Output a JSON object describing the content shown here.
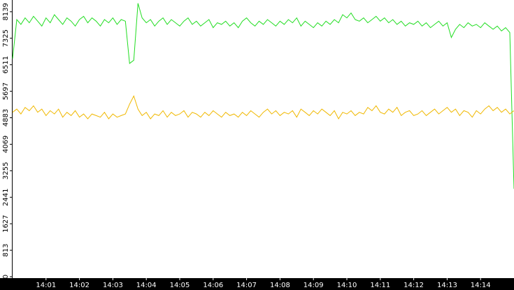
{
  "chart_data": {
    "type": "line",
    "x": [
      0,
      0.125,
      0.25,
      0.375,
      0.5,
      0.625,
      0.75,
      0.875,
      1,
      1.125,
      1.25,
      1.375,
      1.5,
      1.625,
      1.75,
      1.875,
      2,
      2.125,
      2.25,
      2.375,
      2.5,
      2.625,
      2.75,
      2.875,
      3,
      3.125,
      3.25,
      3.375,
      3.5,
      3.625,
      3.75,
      3.875,
      4,
      4.125,
      4.25,
      4.375,
      4.5,
      4.625,
      4.75,
      4.875,
      5,
      5.125,
      5.25,
      5.375,
      5.5,
      5.625,
      5.75,
      5.875,
      6,
      6.125,
      6.25,
      6.375,
      6.5,
      6.625,
      6.75,
      6.875,
      7,
      7.125,
      7.25,
      7.375,
      7.5,
      7.625,
      7.75,
      7.875,
      8,
      8.125,
      8.25,
      8.375,
      8.5,
      8.625,
      8.75,
      8.875,
      9,
      9.125,
      9.25,
      9.375,
      9.5,
      9.625,
      9.75,
      9.875,
      10,
      10.125,
      10.25,
      10.375,
      10.5,
      10.625,
      10.75,
      10.875,
      11,
      11.125,
      11.25,
      11.375,
      11.5,
      11.625,
      11.75,
      11.875,
      12,
      12.125,
      12.25,
      12.375,
      12.5,
      12.625,
      12.75,
      12.875,
      13,
      13.125,
      13.25,
      13.375,
      13.5,
      13.625,
      13.75,
      13.875,
      14,
      14.125,
      14.25,
      14.375,
      14.5,
      14.625,
      14.75,
      14.875,
      15
    ],
    "series": [
      {
        "color": "#22dd22",
        "values": [
          6700,
          7900,
          7750,
          7950,
          7800,
          8000,
          7850,
          7700,
          7950,
          7800,
          8050,
          7900,
          7750,
          7950,
          7850,
          7700,
          7900,
          8000,
          7800,
          7950,
          7850,
          7700,
          7900,
          7800,
          7950,
          7750,
          7900,
          7850,
          6550,
          6650,
          8400,
          7950,
          7800,
          7900,
          7700,
          7850,
          7950,
          7750,
          7900,
          7800,
          7700,
          7850,
          7950,
          7750,
          7850,
          7700,
          7800,
          7900,
          7650,
          7800,
          7750,
          7850,
          7700,
          7800,
          7650,
          7850,
          7950,
          7800,
          7700,
          7850,
          7750,
          7900,
          7800,
          7700,
          7850,
          7750,
          7900,
          7800,
          7950,
          7700,
          7850,
          7750,
          7650,
          7800,
          7700,
          7850,
          7750,
          7900,
          7800,
          8050,
          7950,
          8100,
          7900,
          7850,
          7950,
          7800,
          7900,
          8000,
          7850,
          7950,
          7800,
          7900,
          7750,
          7850,
          7700,
          7800,
          7750,
          7850,
          7700,
          7800,
          7650,
          7750,
          7850,
          7700,
          7800,
          7350,
          7600,
          7750,
          7650,
          7800,
          7700,
          7750,
          7650,
          7800,
          7700,
          7600,
          7700,
          7550,
          7650,
          7500,
          2700
        ]
      },
      {
        "color": "#f0b800",
        "values": [
          5050,
          5150,
          5000,
          5200,
          5100,
          5250,
          5050,
          5150,
          4950,
          5100,
          5000,
          5150,
          4900,
          5050,
          4950,
          5100,
          4900,
          5000,
          4850,
          5000,
          4950,
          4900,
          5050,
          4850,
          5000,
          4900,
          4950,
          5000,
          5300,
          5550,
          5150,
          4950,
          5050,
          4850,
          5000,
          4950,
          5100,
          4900,
          5050,
          4950,
          5000,
          5100,
          4900,
          5050,
          5000,
          4900,
          5050,
          4950,
          5100,
          5000,
          4900,
          5050,
          4950,
          5000,
          4900,
          5050,
          4950,
          5100,
          5000,
          4900,
          5050,
          5150,
          5000,
          5100,
          4950,
          5050,
          5000,
          5100,
          4900,
          5150,
          5050,
          4950,
          5100,
          5000,
          5150,
          5050,
          4950,
          5100,
          4850,
          5050,
          5000,
          5100,
          4950,
          5050,
          5000,
          5200,
          5100,
          5250,
          5050,
          5000,
          5150,
          5050,
          5200,
          4950,
          5050,
          5100,
          4950,
          5000,
          5100,
          4950,
          5050,
          5150,
          5000,
          5100,
          5200,
          5050,
          5150,
          4950,
          5100,
          5050,
          4900,
          5100,
          5000,
          5150,
          5250,
          5100,
          5200,
          5050,
          5150,
          5000,
          5100
        ]
      }
    ],
    "xlim": [
      0,
      15
    ],
    "xticks": [
      {
        "value": 1,
        "label": "14:01"
      },
      {
        "value": 2,
        "label": "14:02"
      },
      {
        "value": 3,
        "label": "14:03"
      },
      {
        "value": 4,
        "label": "14:04"
      },
      {
        "value": 5,
        "label": "14:05"
      },
      {
        "value": 6,
        "label": "14:06"
      },
      {
        "value": 7,
        "label": "14:07"
      },
      {
        "value": 8,
        "label": "14:08"
      },
      {
        "value": 9,
        "label": "14:09"
      },
      {
        "value": 10,
        "label": "14:10"
      },
      {
        "value": 11,
        "label": "14:11"
      },
      {
        "value": 12,
        "label": "14:12"
      },
      {
        "value": 13,
        "label": "14:13"
      },
      {
        "value": 14,
        "label": "14:14"
      }
    ],
    "ylim": [
      0,
      8500
    ],
    "yticks": [
      0,
      813,
      1627,
      2441,
      3255,
      4069,
      4883,
      5697,
      6511,
      7325,
      8139
    ]
  }
}
